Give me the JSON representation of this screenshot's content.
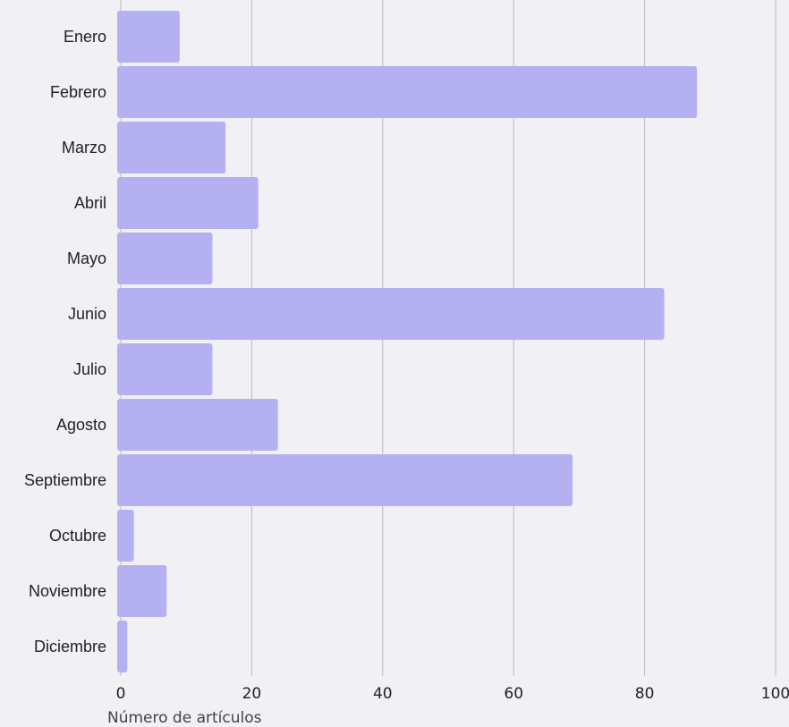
{
  "chart_data": {
    "type": "bar",
    "orientation": "horizontal",
    "categories": [
      "Enero",
      "Febrero",
      "Marzo",
      "Abril",
      "Mayo",
      "Junio",
      "Julio",
      "Agosto",
      "Septiembre",
      "Octubre",
      "Noviembre",
      "Diciembre"
    ],
    "values": [
      9,
      88,
      16,
      21,
      14,
      83,
      14,
      24,
      69,
      2,
      7,
      1
    ],
    "xlabel": "Número de artículos",
    "ylabel": "",
    "xlim": [
      0,
      100
    ],
    "xticks": [
      "0",
      "20",
      "40",
      "60",
      "80",
      "100"
    ],
    "grid": "vertical",
    "legend": "none",
    "colors": {
      "bar": "#b4b0f2",
      "grid": "#bbbbbb",
      "background": "#f0f0f5"
    }
  }
}
